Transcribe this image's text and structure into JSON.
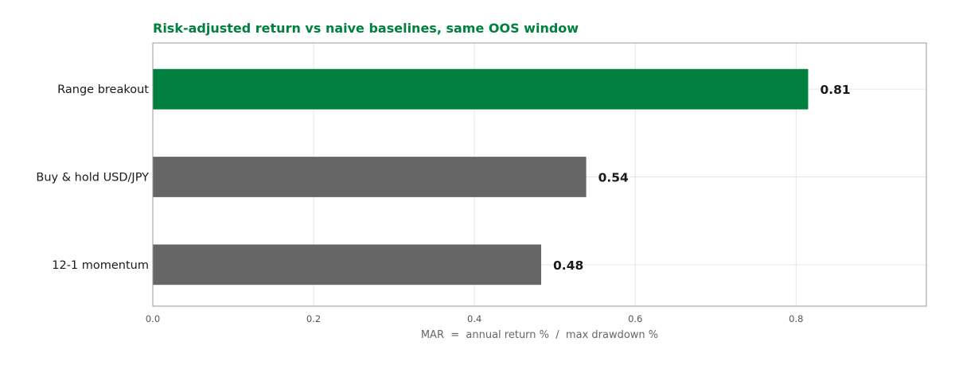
{
  "chart_data": {
    "type": "bar",
    "orientation": "horizontal",
    "title": "Risk-adjusted return vs naive baselines, same OOS window",
    "xlabel": "MAR  =  annual return %  /  max drawdown %",
    "ylabel": "",
    "categories": [
      "Range breakout",
      "Buy & hold USD/JPY",
      "12-1 momentum"
    ],
    "values": [
      0.815,
      0.539,
      0.483
    ],
    "value_labels": [
      "0.81",
      "0.54",
      "0.48"
    ],
    "xlim": [
      0,
      0.962
    ],
    "xticks": [
      0.0,
      0.2,
      0.4,
      0.6,
      0.8
    ],
    "xtick_labels": [
      "0.0",
      "0.2",
      "0.4",
      "0.6",
      "0.8"
    ],
    "grid": true,
    "legend": "none",
    "colors": {
      "highlight": "#007f3f",
      "baseline": "#666666",
      "title": "#007f3f",
      "grid": "#e6e6e6",
      "frame": "#999999"
    },
    "bar_colors": [
      "#007f3f",
      "#666666",
      "#666666"
    ]
  }
}
